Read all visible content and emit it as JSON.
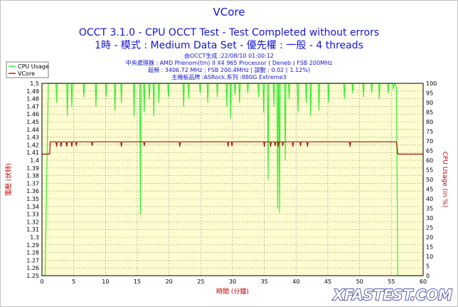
{
  "header": {
    "title": "VCore",
    "subtitle": "OCCT 3.1.0 - CPU OCCT Test - Test Completed without errors",
    "subtitle2": "1時 - 模式 : Medium Data Set - 優先權 : 一般 - 4 threads",
    "info": [
      "由OCCT生成 :22/08/10 01:00:12",
      "中央處理器 : AMD Phenom(tm) II X4 965 Processor ( Deneb ) FSB 200MHz",
      "超頻 : 3406.72 MHz ; FSB 200.4MHz | 誤動 : 0.02 ( 1.12%)",
      "主機板品牌 :ASRock,系列 :880G Extreme3"
    ]
  },
  "watermark": "XFASTEST.COM",
  "colors": {
    "plot_bg": "#fffdd0",
    "cpu_usage": "#33ee33",
    "vcore": "#a01010",
    "title": "#1515d0",
    "axis_label": "#c00000"
  },
  "chart_data": {
    "type": "line",
    "xlabel": "時間 (分鐘)",
    "ylabel_left": "電壓 (伏特)",
    "ylabel_right": "CPU Usage (in %)",
    "x_range": [
      0,
      60
    ],
    "y_left_range": [
      1.25,
      1.5
    ],
    "y_right_range": [
      0,
      100
    ],
    "x_ticks": [
      0,
      5,
      10,
      15,
      20,
      25,
      30,
      35,
      40,
      45,
      50,
      55,
      60
    ],
    "y_left_ticks": [
      "1.25",
      "1.26",
      "1.27",
      "1.28",
      "1.29",
      "1.3",
      "1.31",
      "1.32",
      "1.33",
      "1.34",
      "1.35",
      "1.36",
      "1.37",
      "1.38",
      "1.39",
      "1.4",
      "1.41",
      "1.42",
      "1.43",
      "1.44",
      "1.45",
      "1.46",
      "1.47",
      "1.48",
      "1.49",
      "1.5"
    ],
    "y_right_ticks": [
      0,
      5,
      10,
      15,
      20,
      25,
      30,
      35,
      40,
      45,
      50,
      55,
      60,
      65,
      70,
      75,
      80,
      85,
      90,
      95,
      100
    ],
    "grid": true,
    "legend_position": "top-left",
    "series": [
      {
        "name": "CPU Usage",
        "axis": "right",
        "x": [
          0,
          0.5,
          1.0,
          1.1,
          2.2,
          2.3,
          2.4,
          3.9,
          4.0,
          4.1,
          4.6,
          4.7,
          4.8,
          5.0,
          5.5,
          6.5,
          6.6,
          6.7,
          8.4,
          8.5,
          8.6,
          10.0,
          10.1,
          10.2,
          11.4,
          11.5,
          11.6,
          12.4,
          12.5,
          12.6,
          14.4,
          14.5,
          14.6,
          15.4,
          15.5,
          15.6,
          16.0,
          16.1,
          16.2,
          16.8,
          16.9,
          17.0,
          17.5,
          17.6,
          17.7,
          18.3,
          18.4,
          18.5,
          19.8,
          19.9,
          20.0,
          22.2,
          22.3,
          22.4,
          23.0,
          23.1,
          23.2,
          24.8,
          24.9,
          25.0,
          26.0,
          26.1,
          26.2,
          27.5,
          27.6,
          27.7,
          29.0,
          29.1,
          29.2,
          29.6,
          29.7,
          29.8,
          30.3,
          30.4,
          30.5,
          31.0,
          31.1,
          31.2,
          32.3,
          32.4,
          32.5,
          34.0,
          34.1,
          34.2,
          34.8,
          34.9,
          35.0,
          35.5,
          35.6,
          35.7,
          36.4,
          36.5,
          36.6,
          37.0,
          37.1,
          37.2,
          37.3,
          37.4,
          37.5,
          38.2,
          38.3,
          38.4,
          38.8,
          38.9,
          39.0,
          40.2,
          40.3,
          40.4,
          41.5,
          41.6,
          41.7,
          42.2,
          42.3,
          42.4,
          43.5,
          43.6,
          43.7,
          45.0,
          45.1,
          45.2,
          47.5,
          47.6,
          47.7,
          48.8,
          48.9,
          49.0,
          50.5,
          50.6,
          50.7,
          51.8,
          51.9,
          52.0,
          53.0,
          53.1,
          53.2,
          54.4,
          54.5,
          54.6,
          55.2,
          55.3,
          55.5,
          55.8,
          56.0,
          60.0
        ],
        "values": [
          0,
          0,
          100,
          100,
          100,
          90,
          100,
          100,
          83,
          100,
          100,
          88,
          100,
          100,
          100,
          100,
          93,
          100,
          100,
          88,
          100,
          100,
          93,
          100,
          100,
          86,
          100,
          100,
          90,
          100,
          100,
          83,
          100,
          100,
          32,
          100,
          100,
          85,
          100,
          100,
          92,
          100,
          100,
          83,
          100,
          100,
          90,
          100,
          100,
          93,
          100,
          100,
          88,
          100,
          100,
          92,
          100,
          100,
          95,
          100,
          100,
          90,
          100,
          100,
          93,
          100,
          100,
          88,
          100,
          100,
          82,
          100,
          100,
          94,
          100,
          100,
          90,
          100,
          100,
          95,
          100,
          100,
          93,
          100,
          100,
          85,
          100,
          100,
          50,
          100,
          100,
          88,
          100,
          100,
          35,
          100,
          100,
          33,
          100,
          100,
          60,
          100,
          100,
          92,
          100,
          100,
          85,
          100,
          100,
          90,
          100,
          100,
          83,
          100,
          100,
          86,
          100,
          100,
          90,
          100,
          100,
          92,
          100,
          100,
          95,
          100,
          100,
          93,
          100,
          100,
          95,
          100,
          100,
          92,
          100,
          100,
          95,
          100,
          100,
          97,
          100,
          98,
          0,
          0
        ]
      },
      {
        "name": "VCore",
        "axis": "left",
        "x": [
          0,
          1.2,
          1.3,
          2.2,
          2.3,
          2.4,
          2.9,
          3.0,
          3.1,
          3.8,
          3.9,
          4.0,
          4.6,
          4.7,
          4.8,
          5.3,
          5.4,
          5.5,
          7.8,
          7.9,
          8.0,
          12.4,
          12.5,
          12.6,
          16.0,
          16.1,
          16.2,
          21.6,
          21.7,
          21.8,
          29.2,
          29.3,
          29.4,
          29.8,
          29.9,
          30.0,
          34.9,
          35.0,
          35.1,
          35.9,
          36.0,
          36.1,
          36.6,
          36.7,
          36.8,
          37.1,
          37.2,
          37.3,
          37.8,
          37.9,
          38.0,
          39.4,
          39.5,
          39.6,
          40.6,
          40.7,
          40.8,
          41.7,
          41.8,
          41.9,
          48.4,
          48.5,
          48.6,
          55.8,
          56.0,
          60.0
        ],
        "values": [
          1.408,
          1.408,
          1.424,
          1.424,
          1.418,
          1.424,
          1.424,
          1.418,
          1.424,
          1.424,
          1.418,
          1.424,
          1.424,
          1.418,
          1.424,
          1.424,
          1.419,
          1.424,
          1.424,
          1.419,
          1.424,
          1.424,
          1.418,
          1.424,
          1.424,
          1.419,
          1.424,
          1.424,
          1.418,
          1.424,
          1.424,
          1.418,
          1.424,
          1.424,
          1.419,
          1.424,
          1.424,
          1.418,
          1.424,
          1.424,
          1.418,
          1.424,
          1.424,
          1.419,
          1.424,
          1.424,
          1.418,
          1.424,
          1.424,
          1.419,
          1.424,
          1.424,
          1.418,
          1.424,
          1.424,
          1.419,
          1.424,
          1.424,
          1.418,
          1.424,
          1.424,
          1.418,
          1.424,
          1.424,
          1.408,
          1.408
        ]
      }
    ]
  }
}
